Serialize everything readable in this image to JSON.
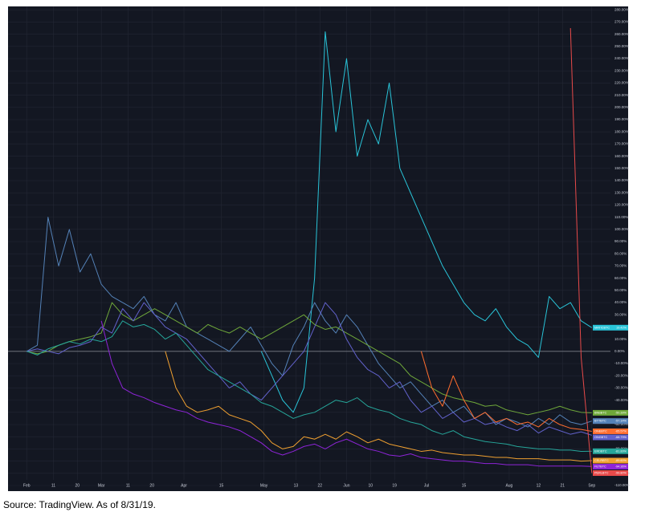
{
  "chart_data": {
    "type": "line",
    "grid": true,
    "x": [
      0,
      4,
      8,
      12,
      16,
      20,
      24,
      28,
      32,
      36,
      40,
      44,
      48,
      52,
      56,
      60,
      64,
      68,
      72,
      76,
      80,
      84,
      88,
      92,
      96,
      100,
      104,
      108,
      112,
      116,
      120,
      124,
      128,
      132,
      136,
      140,
      144,
      148,
      152,
      156,
      160,
      164,
      168,
      172,
      176,
      180,
      184,
      188,
      192,
      196,
      200,
      204,
      208,
      212
    ],
    "xlim": [
      -7,
      219
    ],
    "xticks": [
      {
        "value": 0,
        "label": "Feb"
      },
      {
        "value": 10,
        "label": "11"
      },
      {
        "value": 19,
        "label": "20"
      },
      {
        "value": 28,
        "label": "Mar"
      },
      {
        "value": 38,
        "label": "11"
      },
      {
        "value": 47,
        "label": "20"
      },
      {
        "value": 59,
        "label": "Apr"
      },
      {
        "value": 73,
        "label": "15"
      },
      {
        "value": 89,
        "label": "May"
      },
      {
        "value": 101,
        "label": "13"
      },
      {
        "value": 110,
        "label": "22"
      },
      {
        "value": 120,
        "label": "Jun"
      },
      {
        "value": 129,
        "label": "10"
      },
      {
        "value": 138,
        "label": "19"
      },
      {
        "value": 150,
        "label": "Jul"
      },
      {
        "value": 164,
        "label": "15"
      },
      {
        "value": 181,
        "label": "Aug"
      },
      {
        "value": 192,
        "label": "12"
      },
      {
        "value": 201,
        "label": "21"
      },
      {
        "value": 212,
        "label": "Sep"
      }
    ],
    "ylim": [
      -114.6,
      282.8
    ],
    "yticks": [
      {
        "value": 280,
        "label": "280.00%"
      },
      {
        "value": 270,
        "label": "270.00%"
      },
      {
        "value": 260,
        "label": "260.00%"
      },
      {
        "value": 250,
        "label": "250.00%"
      },
      {
        "value": 240,
        "label": "240.00%"
      },
      {
        "value": 230,
        "label": "230.00%"
      },
      {
        "value": 220,
        "label": "220.00%"
      },
      {
        "value": 210,
        "label": "210.00%"
      },
      {
        "value": 200,
        "label": "200.00%"
      },
      {
        "value": 190,
        "label": "190.00%"
      },
      {
        "value": 180,
        "label": "180.00%"
      },
      {
        "value": 170,
        "label": "170.00%"
      },
      {
        "value": 160,
        "label": "160.00%"
      },
      {
        "value": 150,
        "label": "150.00%"
      },
      {
        "value": 140,
        "label": "140.00%"
      },
      {
        "value": 130,
        "label": "130.00%"
      },
      {
        "value": 120,
        "label": "120.00%"
      },
      {
        "value": 110,
        "label": "110.00%"
      },
      {
        "value": 100,
        "label": "100.00%"
      },
      {
        "value": 90,
        "label": "90.00%"
      },
      {
        "value": 80,
        "label": "80.00%"
      },
      {
        "value": 70,
        "label": "70.00%"
      },
      {
        "value": 60,
        "label": "60.00%"
      },
      {
        "value": 50,
        "label": "50.00%"
      },
      {
        "value": 40,
        "label": "40.00%"
      },
      {
        "value": 30,
        "label": "30.00%"
      },
      {
        "value": 20,
        "label": "20.00%"
      },
      {
        "value": 10,
        "label": "10.00%"
      },
      {
        "value": 0,
        "label": "0.00%"
      },
      {
        "value": -10,
        "label": "-10.00%"
      },
      {
        "value": -20,
        "label": "-20.00%"
      },
      {
        "value": -30,
        "label": "-30.00%"
      },
      {
        "value": -40,
        "label": "-40.00%"
      },
      {
        "value": -50,
        "label": "-50.00%"
      },
      {
        "value": -60,
        "label": "-60.00%"
      },
      {
        "value": -70,
        "label": "-70.00%"
      },
      {
        "value": -80,
        "label": "-80.00%"
      },
      {
        "value": -90,
        "label": "-90.00%"
      },
      {
        "value": -100,
        "label": "-100.00%"
      },
      {
        "value": -110,
        "label": "-110.00%"
      }
    ],
    "series": [
      {
        "name": "MATICBTC",
        "color": "#29c4d8",
        "last_label": "19.42%",
        "values": [
          null,
          null,
          null,
          null,
          null,
          null,
          null,
          null,
          null,
          null,
          null,
          null,
          null,
          null,
          null,
          null,
          null,
          null,
          null,
          null,
          null,
          null,
          0,
          -20,
          -40,
          -50,
          -30,
          60,
          262,
          180,
          240,
          160,
          190,
          170,
          220,
          150,
          130,
          110,
          90,
          70,
          55,
          40,
          30,
          25,
          35,
          20,
          10,
          5,
          -5,
          45,
          35,
          40,
          25,
          19.42
        ]
      },
      {
        "name": "BTTBTC",
        "color": "#5482b8",
        "last_label": "-57.14%",
        "values": [
          0,
          5,
          110,
          70,
          100,
          65,
          80,
          55,
          45,
          40,
          35,
          45,
          30,
          25,
          40,
          20,
          15,
          10,
          5,
          0,
          10,
          20,
          5,
          -10,
          -20,
          5,
          20,
          40,
          25,
          15,
          30,
          20,
          5,
          -10,
          -20,
          -30,
          -25,
          -35,
          -45,
          -40,
          -50,
          -45,
          -55,
          -50,
          -60,
          -55,
          -58,
          -62,
          -55,
          -60,
          -52,
          -58,
          -60,
          -57.14
        ]
      },
      {
        "name": "BNBBTC",
        "color": "#6fa83a",
        "last_label": "-50.39%",
        "values": [
          0,
          -2,
          0,
          5,
          8,
          10,
          12,
          15,
          40,
          30,
          25,
          30,
          35,
          30,
          25,
          20,
          15,
          22,
          18,
          15,
          20,
          15,
          10,
          15,
          20,
          25,
          30,
          22,
          18,
          20,
          15,
          10,
          5,
          0,
          -5,
          -10,
          -20,
          -25,
          -30,
          -35,
          -38,
          -40,
          -42,
          -45,
          -44,
          -48,
          -50,
          -52,
          -50,
          -48,
          -45,
          -48,
          -50,
          -50.39
        ]
      },
      {
        "name": "ONGBTC",
        "color": "#6262cc",
        "last_label": "-68.79%",
        "values": [
          0,
          2,
          0,
          -2,
          3,
          5,
          8,
          20,
          15,
          35,
          25,
          40,
          30,
          20,
          15,
          10,
          0,
          -10,
          -20,
          -30,
          -25,
          -35,
          -40,
          -30,
          -20,
          -10,
          0,
          20,
          40,
          30,
          10,
          -5,
          -15,
          -20,
          -30,
          -25,
          -40,
          -50,
          -45,
          -55,
          -50,
          -58,
          -55,
          -60,
          -58,
          -62,
          -65,
          -60,
          -67,
          -62,
          -65,
          -68,
          -66,
          -68.79
        ]
      },
      {
        "name": "ERDBTC",
        "color": "#26a69a",
        "last_label": "-81.89%",
        "values": [
          0,
          -3,
          2,
          5,
          8,
          6,
          10,
          8,
          12,
          25,
          20,
          22,
          18,
          10,
          15,
          5,
          -5,
          -15,
          -20,
          -25,
          -30,
          -35,
          -42,
          -45,
          -50,
          -55,
          -52,
          -50,
          -45,
          -40,
          -42,
          -38,
          -45,
          -48,
          -50,
          -55,
          -58,
          -60,
          -65,
          -68,
          -65,
          -70,
          -72,
          -74,
          -75,
          -76,
          -78,
          -79,
          -80,
          -80,
          -81,
          -81,
          -82,
          -81.89
        ]
      },
      {
        "name": "CELRBTC",
        "color": "#f0a030",
        "last_label": "-89.60%",
        "values": [
          null,
          null,
          null,
          null,
          null,
          null,
          null,
          null,
          null,
          null,
          null,
          null,
          null,
          0,
          -30,
          -45,
          -50,
          -48,
          -45,
          -52,
          -55,
          -58,
          -65,
          -75,
          -80,
          -78,
          -70,
          -72,
          -68,
          -72,
          -66,
          -70,
          -75,
          -72,
          -76,
          -78,
          -80,
          -82,
          -81,
          -83,
          -84,
          -85,
          -85,
          -86,
          -87,
          -87,
          -88,
          -88,
          -88,
          -89,
          -89,
          -89,
          -90,
          -89.6
        ]
      },
      {
        "name": "FETBTC",
        "color": "#8e24d8",
        "last_label": "-94.36%",
        "values": [
          null,
          null,
          null,
          null,
          null,
          null,
          null,
          25,
          -10,
          -30,
          -35,
          -38,
          -42,
          -45,
          -48,
          -50,
          -55,
          -58,
          -60,
          -62,
          -65,
          -70,
          -75,
          -82,
          -85,
          -82,
          -78,
          -76,
          -80,
          -75,
          -72,
          -76,
          -80,
          -82,
          -85,
          -86,
          -84,
          -87,
          -88,
          -89,
          -90,
          -90,
          -91,
          -92,
          -92,
          -93,
          -93,
          -93,
          -94,
          -94,
          -94,
          -94,
          -94,
          -94.36
        ]
      },
      {
        "name": "ONEBTC",
        "color": "#ff6d2e",
        "last_label": "-65.57%",
        "values": [
          null,
          null,
          null,
          null,
          null,
          null,
          null,
          null,
          null,
          null,
          null,
          null,
          null,
          null,
          null,
          null,
          null,
          null,
          null,
          null,
          null,
          null,
          null,
          null,
          null,
          null,
          null,
          null,
          null,
          null,
          null,
          null,
          null,
          null,
          null,
          null,
          null,
          0,
          -30,
          -45,
          -20,
          -40,
          -55,
          -50,
          -58,
          -55,
          -60,
          -58,
          -62,
          -55,
          -60,
          -63,
          -64,
          -65.57
        ]
      },
      {
        "name": "PERLBTC",
        "color": "#e84a4a",
        "last_label": "-99.80%",
        "values": [
          null,
          null,
          null,
          null,
          null,
          null,
          null,
          null,
          null,
          null,
          null,
          null,
          null,
          null,
          null,
          null,
          null,
          null,
          null,
          null,
          null,
          null,
          null,
          null,
          null,
          null,
          null,
          null,
          null,
          null,
          null,
          null,
          null,
          null,
          null,
          null,
          null,
          null,
          null,
          null,
          null,
          null,
          null,
          null,
          null,
          null,
          null,
          null,
          null,
          null,
          null,
          265,
          -5,
          -99.8
        ]
      }
    ]
  },
  "source": "Source: TradingView. As of 8/31/19."
}
